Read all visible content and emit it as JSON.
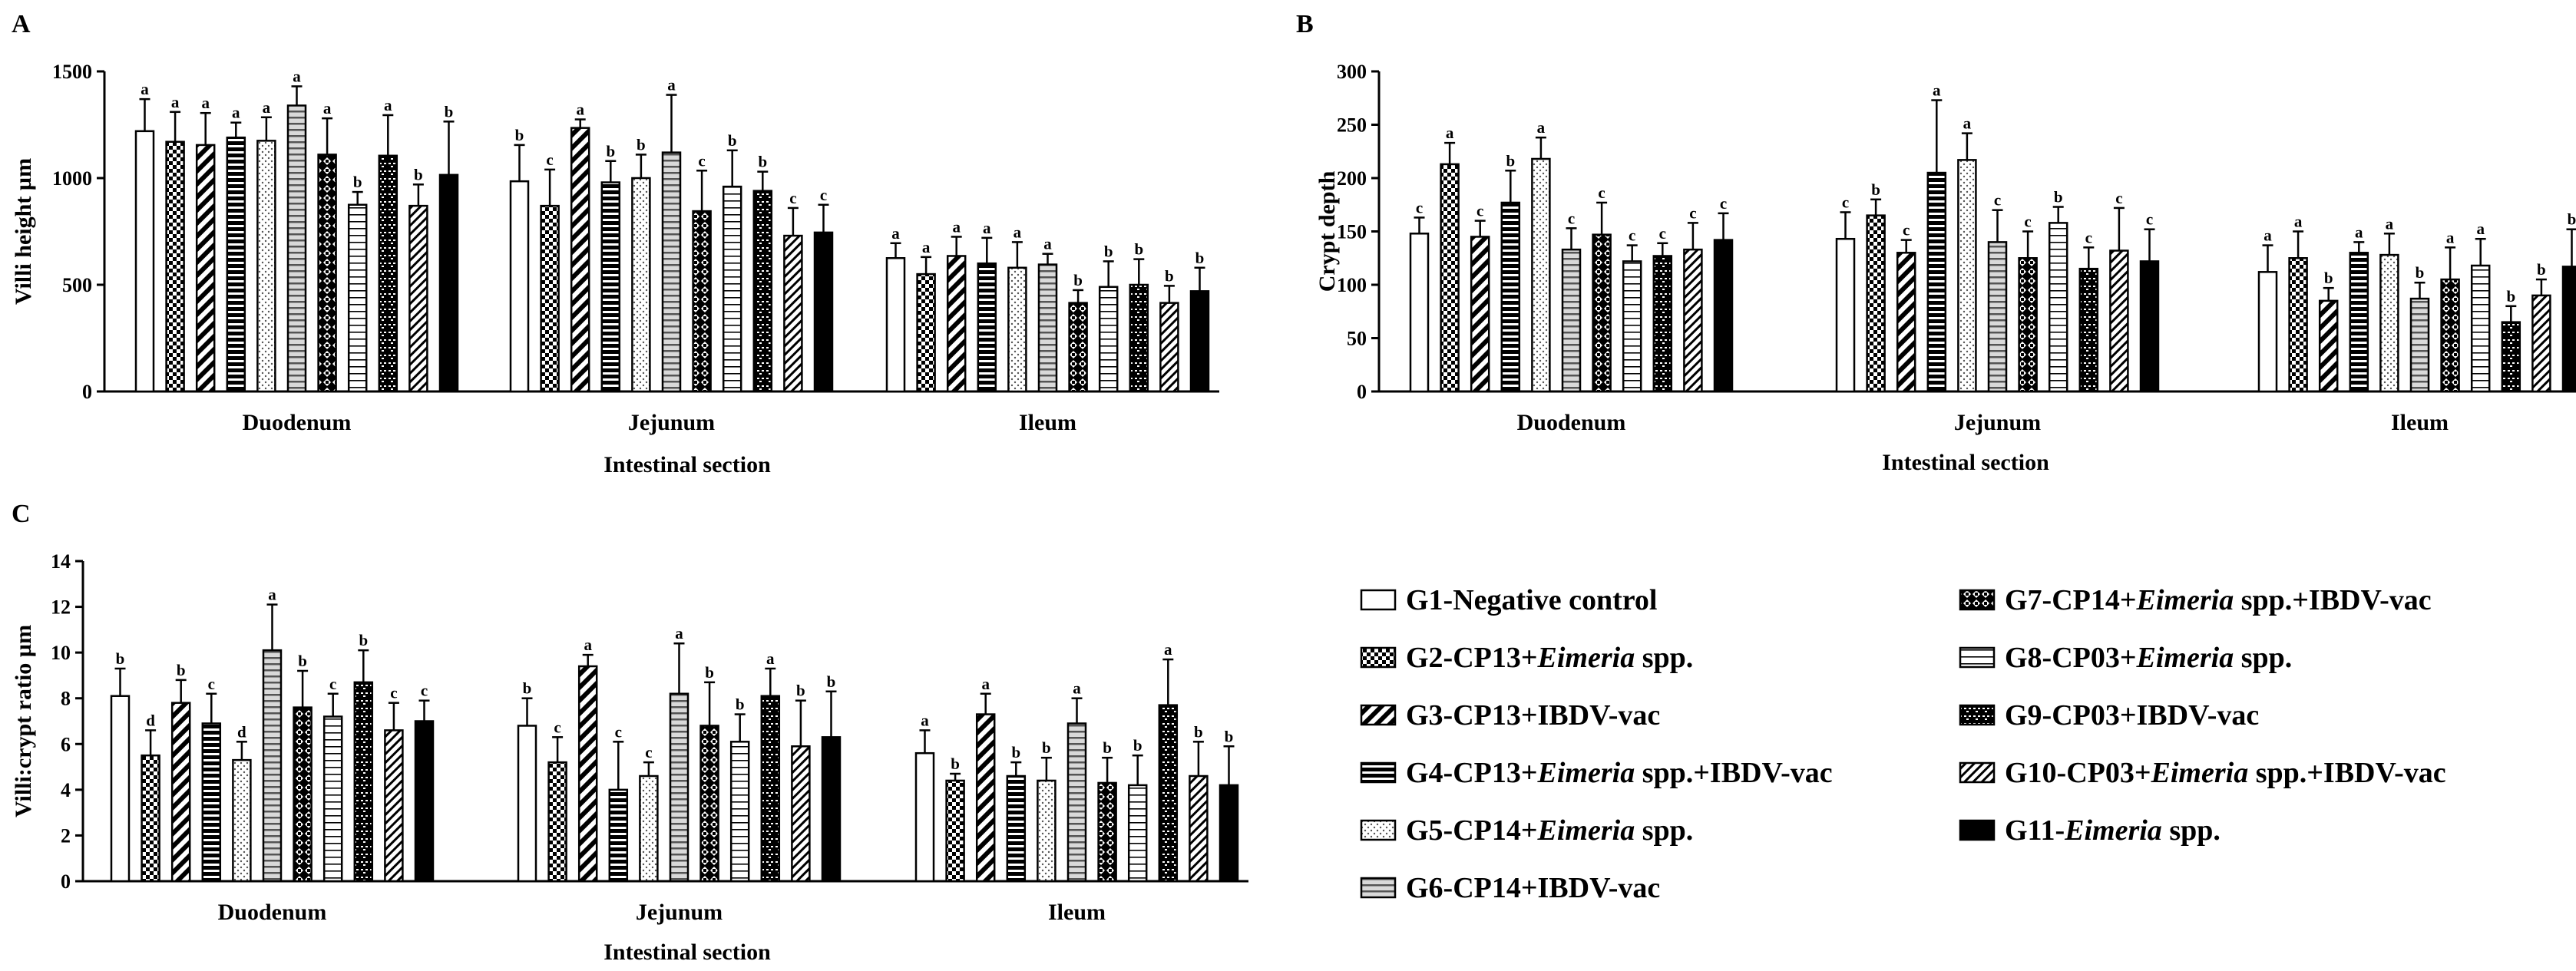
{
  "chart_data": [
    {
      "type": "bar",
      "panel": "A",
      "ylabel": "Villi height µm",
      "xlabel": "Intestinal section",
      "ylim": [
        0,
        1500
      ],
      "yticks": [
        0,
        500,
        1000,
        1500
      ],
      "categories": [
        "Duodenum",
        "Jejunum",
        "Ileum"
      ],
      "series": [
        {
          "name": "G1",
          "values": [
            1220,
            985,
            625
          ],
          "errors": [
            150,
            170,
            70
          ],
          "letters": [
            "a",
            "b",
            "a"
          ]
        },
        {
          "name": "G2",
          "values": [
            1170,
            870,
            550
          ],
          "errors": [
            140,
            170,
            80
          ],
          "letters": [
            "a",
            "c",
            "a"
          ]
        },
        {
          "name": "G3",
          "values": [
            1155,
            1235,
            635
          ],
          "errors": [
            150,
            40,
            90
          ],
          "letters": [
            "a",
            "a",
            "a"
          ]
        },
        {
          "name": "G4",
          "values": [
            1190,
            980,
            600
          ],
          "errors": [
            70,
            100,
            120
          ],
          "letters": [
            "a",
            "b",
            "a"
          ]
        },
        {
          "name": "G5",
          "values": [
            1175,
            1000,
            580
          ],
          "errors": [
            110,
            110,
            120
          ],
          "letters": [
            "a",
            "b",
            "a"
          ]
        },
        {
          "name": "G6",
          "values": [
            1340,
            1120,
            595
          ],
          "errors": [
            90,
            270,
            50
          ],
          "letters": [
            "a",
            "a",
            "a"
          ]
        },
        {
          "name": "G7",
          "values": [
            1110,
            845,
            415
          ],
          "errors": [
            170,
            190,
            60
          ],
          "letters": [
            "a",
            "c",
            "b"
          ]
        },
        {
          "name": "G8",
          "values": [
            875,
            960,
            490
          ],
          "errors": [
            60,
            170,
            120
          ],
          "letters": [
            "b",
            "b",
            "b"
          ]
        },
        {
          "name": "G9",
          "values": [
            1105,
            940,
            500
          ],
          "errors": [
            190,
            90,
            120
          ],
          "letters": [
            "a",
            "b",
            "b"
          ]
        },
        {
          "name": "G10",
          "values": [
            870,
            730,
            415
          ],
          "errors": [
            100,
            130,
            80
          ],
          "letters": [
            "b",
            "c",
            "b"
          ]
        },
        {
          "name": "G11",
          "values": [
            1015,
            745,
            470
          ],
          "errors": [
            250,
            130,
            110
          ],
          "letters": [
            "b",
            "c",
            "b"
          ]
        }
      ]
    },
    {
      "type": "bar",
      "panel": "B",
      "ylabel": "Crypt depth",
      "xlabel": "Intestinal section",
      "ylim": [
        0,
        300
      ],
      "yticks": [
        0,
        50,
        100,
        150,
        200,
        250,
        300
      ],
      "categories": [
        "Duodenum",
        "Jejunum",
        "Ileum"
      ],
      "series": [
        {
          "name": "G1",
          "values": [
            148,
            143,
            112
          ],
          "errors": [
            15,
            25,
            25
          ],
          "letters": [
            "c",
            "c",
            "a"
          ]
        },
        {
          "name": "G2",
          "values": [
            213,
            165,
            125
          ],
          "errors": [
            20,
            15,
            25
          ],
          "letters": [
            "a",
            "b",
            "a"
          ]
        },
        {
          "name": "G3",
          "values": [
            145,
            130,
            85
          ],
          "errors": [
            15,
            12,
            12
          ],
          "letters": [
            "c",
            "c",
            "b"
          ]
        },
        {
          "name": "G4",
          "values": [
            177,
            205,
            130
          ],
          "errors": [
            30,
            68,
            10
          ],
          "letters": [
            "b",
            "a",
            "a"
          ]
        },
        {
          "name": "G5",
          "values": [
            218,
            217,
            128
          ],
          "errors": [
            20,
            25,
            20
          ],
          "letters": [
            "a",
            "a",
            "a"
          ]
        },
        {
          "name": "G6",
          "values": [
            133,
            140,
            87
          ],
          "errors": [
            20,
            30,
            15
          ],
          "letters": [
            "c",
            "c",
            "b"
          ]
        },
        {
          "name": "G7",
          "values": [
            147,
            125,
            105
          ],
          "errors": [
            30,
            25,
            30
          ],
          "letters": [
            "c",
            "c",
            "a"
          ]
        },
        {
          "name": "G8",
          "values": [
            122,
            158,
            118
          ],
          "errors": [
            15,
            15,
            25
          ],
          "letters": [
            "c",
            "b",
            "a"
          ]
        },
        {
          "name": "G9",
          "values": [
            127,
            115,
            65
          ],
          "errors": [
            12,
            20,
            15
          ],
          "letters": [
            "c",
            "c",
            "b"
          ]
        },
        {
          "name": "G10",
          "values": [
            133,
            132,
            90
          ],
          "errors": [
            25,
            40,
            15
          ],
          "letters": [
            "c",
            "c",
            "b"
          ]
        },
        {
          "name": "G11",
          "values": [
            142,
            122,
            117
          ],
          "errors": [
            25,
            30,
            35
          ],
          "letters": [
            "c",
            "c",
            "b"
          ]
        }
      ]
    },
    {
      "type": "bar",
      "panel": "C",
      "ylabel": "Villi:crypt ratio µm",
      "xlabel": "Intestinal section",
      "ylim": [
        0,
        14
      ],
      "yticks": [
        0,
        2,
        4,
        6,
        8,
        10,
        12,
        14
      ],
      "categories": [
        "Duodenum",
        "Jejunum",
        "Ileum"
      ],
      "series": [
        {
          "name": "G1",
          "values": [
            8.1,
            6.8,
            5.6
          ],
          "errors": [
            1.2,
            1.2,
            1.0
          ],
          "letters": [
            "b",
            "b",
            "a"
          ]
        },
        {
          "name": "G2",
          "values": [
            5.5,
            5.2,
            4.4
          ],
          "errors": [
            1.1,
            1.1,
            0.3
          ],
          "letters": [
            "d",
            "c",
            "b"
          ]
        },
        {
          "name": "G3",
          "values": [
            7.8,
            9.4,
            7.3
          ],
          "errors": [
            1.0,
            0.5,
            0.9
          ],
          "letters": [
            "b",
            "a",
            "a"
          ]
        },
        {
          "name": "G4",
          "values": [
            6.9,
            4.0,
            4.6
          ],
          "errors": [
            1.3,
            2.1,
            0.6
          ],
          "letters": [
            "c",
            "c",
            "b"
          ]
        },
        {
          "name": "G5",
          "values": [
            5.3,
            4.6,
            4.4
          ],
          "errors": [
            0.8,
            0.6,
            1.0
          ],
          "letters": [
            "d",
            "c",
            "b"
          ]
        },
        {
          "name": "G6",
          "values": [
            10.1,
            8.2,
            6.9
          ],
          "errors": [
            2.0,
            2.2,
            1.1
          ],
          "letters": [
            "a",
            "a",
            "a"
          ]
        },
        {
          "name": "G7",
          "values": [
            7.6,
            6.8,
            4.3
          ],
          "errors": [
            1.6,
            1.9,
            1.1
          ],
          "letters": [
            "b",
            "b",
            "b"
          ]
        },
        {
          "name": "G8",
          "values": [
            7.2,
            6.1,
            4.2
          ],
          "errors": [
            1.0,
            1.2,
            1.3
          ],
          "letters": [
            "c",
            "b",
            "b"
          ]
        },
        {
          "name": "G9",
          "values": [
            8.7,
            8.1,
            7.7
          ],
          "errors": [
            1.4,
            1.2,
            2.0
          ],
          "letters": [
            "b",
            "a",
            "a"
          ]
        },
        {
          "name": "G10",
          "values": [
            6.6,
            5.9,
            4.6
          ],
          "errors": [
            1.2,
            2.0,
            1.5
          ],
          "letters": [
            "c",
            "b",
            "b"
          ]
        },
        {
          "name": "G11",
          "values": [
            7.0,
            6.3,
            4.2
          ],
          "errors": [
            0.9,
            2.0,
            1.7
          ],
          "letters": [
            "c",
            "b",
            "b"
          ]
        }
      ]
    }
  ],
  "legend": [
    {
      "group": "G1",
      "pattern": "empty",
      "parts": [
        {
          "text": "G1-Negative control",
          "italic": false
        }
      ]
    },
    {
      "group": "G2",
      "pattern": "checker",
      "parts": [
        {
          "text": "G2-CP13+",
          "italic": false
        },
        {
          "text": "Eimeria",
          "italic": true
        },
        {
          "text": " spp.",
          "italic": false
        }
      ]
    },
    {
      "group": "G3",
      "pattern": "diag-bold",
      "parts": [
        {
          "text": "G3-CP13+IBDV-vac",
          "italic": false
        }
      ]
    },
    {
      "group": "G4",
      "pattern": "hstripe-bold",
      "parts": [
        {
          "text": "G4-CP13+",
          "italic": false
        },
        {
          "text": "Eimeria",
          "italic": true
        },
        {
          "text": " spp.+IBDV-vac",
          "italic": false
        }
      ]
    },
    {
      "group": "G5",
      "pattern": "dots",
      "parts": [
        {
          "text": "G5-CP14+",
          "italic": false
        },
        {
          "text": "Eimeria",
          "italic": true
        },
        {
          "text": " spp.",
          "italic": false
        }
      ]
    },
    {
      "group": "G6",
      "pattern": "hstripe-gray",
      "parts": [
        {
          "text": "G6-CP14+IBDV-vac",
          "italic": false
        }
      ]
    },
    {
      "group": "G7",
      "pattern": "diamond",
      "parts": [
        {
          "text": "G7-CP14+",
          "italic": false
        },
        {
          "text": "Eimeria",
          "italic": true
        },
        {
          "text": " spp.+IBDV-vac",
          "italic": false
        }
      ]
    },
    {
      "group": "G8",
      "pattern": "hstripe-thin",
      "parts": [
        {
          "text": "G8-CP03+",
          "italic": false
        },
        {
          "text": "Eimeria",
          "italic": true
        },
        {
          "text": " spp.",
          "italic": false
        }
      ]
    },
    {
      "group": "G9",
      "pattern": "brick",
      "parts": [
        {
          "text": "G9-CP03+IBDV-vac",
          "italic": false
        }
      ]
    },
    {
      "group": "G10",
      "pattern": "diag-thin",
      "parts": [
        {
          "text": "G10-CP03+",
          "italic": false
        },
        {
          "text": "Eimeria",
          "italic": true
        },
        {
          "text": " spp.+IBDV-vac",
          "italic": false
        }
      ]
    },
    {
      "group": "G11",
      "pattern": "solid",
      "parts": [
        {
          "text": "G11-",
          "italic": false
        },
        {
          "text": "Eimeria",
          "italic": true
        },
        {
          "text": " spp.",
          "italic": false
        }
      ]
    }
  ]
}
